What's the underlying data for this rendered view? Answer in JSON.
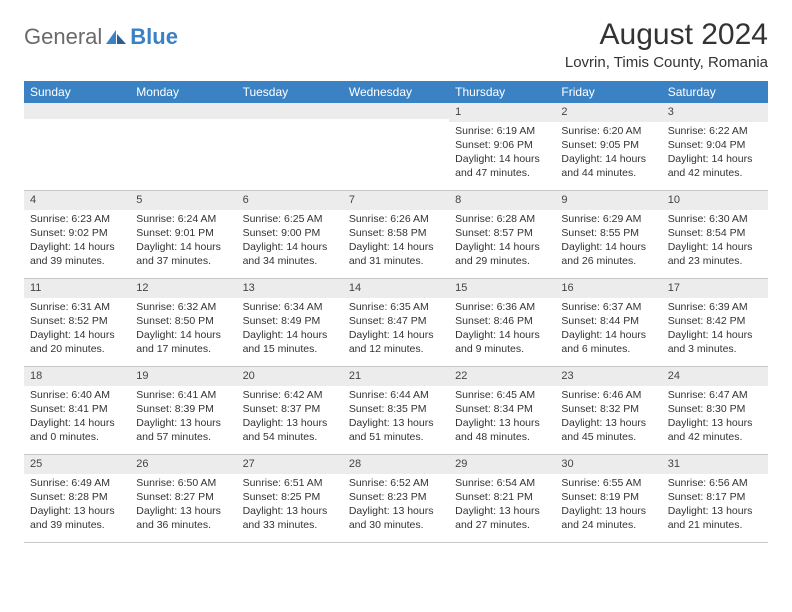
{
  "logo": {
    "text1": "General",
    "text2": "Blue"
  },
  "title": "August 2024",
  "location": "Lovrin, Timis County, Romania",
  "colors": {
    "header_bg": "#3b82c4",
    "header_text": "#ffffff",
    "daynum_bg": "#ececec",
    "border": "#c7c7c7",
    "text": "#333333"
  },
  "weekdays": [
    "Sunday",
    "Monday",
    "Tuesday",
    "Wednesday",
    "Thursday",
    "Friday",
    "Saturday"
  ],
  "weeks": [
    [
      {
        "empty": true
      },
      {
        "empty": true
      },
      {
        "empty": true
      },
      {
        "empty": true
      },
      {
        "day": "1",
        "sunrise": "Sunrise: 6:19 AM",
        "sunset": "Sunset: 9:06 PM",
        "daylight": "Daylight: 14 hours and 47 minutes."
      },
      {
        "day": "2",
        "sunrise": "Sunrise: 6:20 AM",
        "sunset": "Sunset: 9:05 PM",
        "daylight": "Daylight: 14 hours and 44 minutes."
      },
      {
        "day": "3",
        "sunrise": "Sunrise: 6:22 AM",
        "sunset": "Sunset: 9:04 PM",
        "daylight": "Daylight: 14 hours and 42 minutes."
      }
    ],
    [
      {
        "day": "4",
        "sunrise": "Sunrise: 6:23 AM",
        "sunset": "Sunset: 9:02 PM",
        "daylight": "Daylight: 14 hours and 39 minutes."
      },
      {
        "day": "5",
        "sunrise": "Sunrise: 6:24 AM",
        "sunset": "Sunset: 9:01 PM",
        "daylight": "Daylight: 14 hours and 37 minutes."
      },
      {
        "day": "6",
        "sunrise": "Sunrise: 6:25 AM",
        "sunset": "Sunset: 9:00 PM",
        "daylight": "Daylight: 14 hours and 34 minutes."
      },
      {
        "day": "7",
        "sunrise": "Sunrise: 6:26 AM",
        "sunset": "Sunset: 8:58 PM",
        "daylight": "Daylight: 14 hours and 31 minutes."
      },
      {
        "day": "8",
        "sunrise": "Sunrise: 6:28 AM",
        "sunset": "Sunset: 8:57 PM",
        "daylight": "Daylight: 14 hours and 29 minutes."
      },
      {
        "day": "9",
        "sunrise": "Sunrise: 6:29 AM",
        "sunset": "Sunset: 8:55 PM",
        "daylight": "Daylight: 14 hours and 26 minutes."
      },
      {
        "day": "10",
        "sunrise": "Sunrise: 6:30 AM",
        "sunset": "Sunset: 8:54 PM",
        "daylight": "Daylight: 14 hours and 23 minutes."
      }
    ],
    [
      {
        "day": "11",
        "sunrise": "Sunrise: 6:31 AM",
        "sunset": "Sunset: 8:52 PM",
        "daylight": "Daylight: 14 hours and 20 minutes."
      },
      {
        "day": "12",
        "sunrise": "Sunrise: 6:32 AM",
        "sunset": "Sunset: 8:50 PM",
        "daylight": "Daylight: 14 hours and 17 minutes."
      },
      {
        "day": "13",
        "sunrise": "Sunrise: 6:34 AM",
        "sunset": "Sunset: 8:49 PM",
        "daylight": "Daylight: 14 hours and 15 minutes."
      },
      {
        "day": "14",
        "sunrise": "Sunrise: 6:35 AM",
        "sunset": "Sunset: 8:47 PM",
        "daylight": "Daylight: 14 hours and 12 minutes."
      },
      {
        "day": "15",
        "sunrise": "Sunrise: 6:36 AM",
        "sunset": "Sunset: 8:46 PM",
        "daylight": "Daylight: 14 hours and 9 minutes."
      },
      {
        "day": "16",
        "sunrise": "Sunrise: 6:37 AM",
        "sunset": "Sunset: 8:44 PM",
        "daylight": "Daylight: 14 hours and 6 minutes."
      },
      {
        "day": "17",
        "sunrise": "Sunrise: 6:39 AM",
        "sunset": "Sunset: 8:42 PM",
        "daylight": "Daylight: 14 hours and 3 minutes."
      }
    ],
    [
      {
        "day": "18",
        "sunrise": "Sunrise: 6:40 AM",
        "sunset": "Sunset: 8:41 PM",
        "daylight": "Daylight: 14 hours and 0 minutes."
      },
      {
        "day": "19",
        "sunrise": "Sunrise: 6:41 AM",
        "sunset": "Sunset: 8:39 PM",
        "daylight": "Daylight: 13 hours and 57 minutes."
      },
      {
        "day": "20",
        "sunrise": "Sunrise: 6:42 AM",
        "sunset": "Sunset: 8:37 PM",
        "daylight": "Daylight: 13 hours and 54 minutes."
      },
      {
        "day": "21",
        "sunrise": "Sunrise: 6:44 AM",
        "sunset": "Sunset: 8:35 PM",
        "daylight": "Daylight: 13 hours and 51 minutes."
      },
      {
        "day": "22",
        "sunrise": "Sunrise: 6:45 AM",
        "sunset": "Sunset: 8:34 PM",
        "daylight": "Daylight: 13 hours and 48 minutes."
      },
      {
        "day": "23",
        "sunrise": "Sunrise: 6:46 AM",
        "sunset": "Sunset: 8:32 PM",
        "daylight": "Daylight: 13 hours and 45 minutes."
      },
      {
        "day": "24",
        "sunrise": "Sunrise: 6:47 AM",
        "sunset": "Sunset: 8:30 PM",
        "daylight": "Daylight: 13 hours and 42 minutes."
      }
    ],
    [
      {
        "day": "25",
        "sunrise": "Sunrise: 6:49 AM",
        "sunset": "Sunset: 8:28 PM",
        "daylight": "Daylight: 13 hours and 39 minutes."
      },
      {
        "day": "26",
        "sunrise": "Sunrise: 6:50 AM",
        "sunset": "Sunset: 8:27 PM",
        "daylight": "Daylight: 13 hours and 36 minutes."
      },
      {
        "day": "27",
        "sunrise": "Sunrise: 6:51 AM",
        "sunset": "Sunset: 8:25 PM",
        "daylight": "Daylight: 13 hours and 33 minutes."
      },
      {
        "day": "28",
        "sunrise": "Sunrise: 6:52 AM",
        "sunset": "Sunset: 8:23 PM",
        "daylight": "Daylight: 13 hours and 30 minutes."
      },
      {
        "day": "29",
        "sunrise": "Sunrise: 6:54 AM",
        "sunset": "Sunset: 8:21 PM",
        "daylight": "Daylight: 13 hours and 27 minutes."
      },
      {
        "day": "30",
        "sunrise": "Sunrise: 6:55 AM",
        "sunset": "Sunset: 8:19 PM",
        "daylight": "Daylight: 13 hours and 24 minutes."
      },
      {
        "day": "31",
        "sunrise": "Sunrise: 6:56 AM",
        "sunset": "Sunset: 8:17 PM",
        "daylight": "Daylight: 13 hours and 21 minutes."
      }
    ]
  ]
}
